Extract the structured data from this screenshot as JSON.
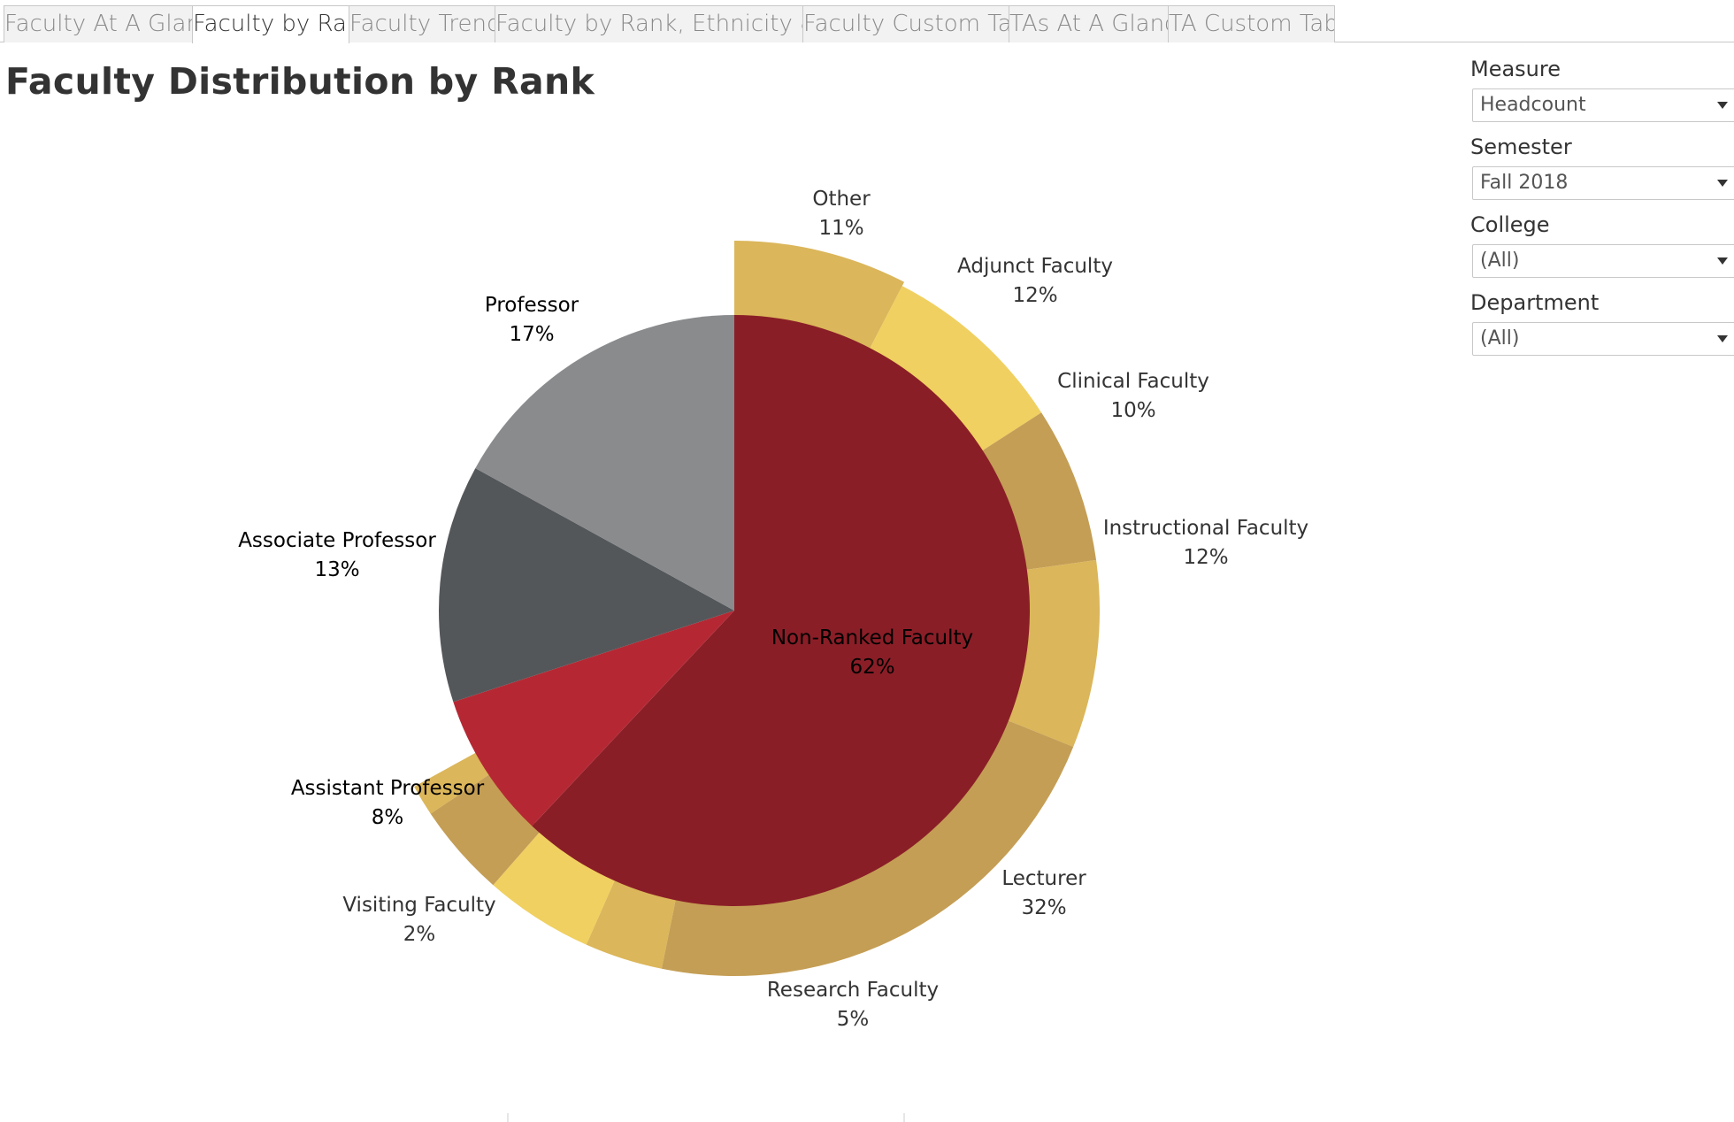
{
  "tabs": [
    {
      "label": "Faculty At A Glance",
      "active": false
    },
    {
      "label": "Faculty by Rank",
      "active": true
    },
    {
      "label": "Faculty Trends",
      "active": false
    },
    {
      "label": "Faculty by Rank, Ethnicity & Ge...",
      "active": false
    },
    {
      "label": "Faculty Custom Table",
      "active": false
    },
    {
      "label": "TAs At A Glance",
      "active": false
    },
    {
      "label": "TA Custom Table",
      "active": false
    }
  ],
  "page_title": "Faculty Distribution by Rank",
  "filters": [
    {
      "label": "Measure",
      "value": "Headcount"
    },
    {
      "label": "Semester",
      "value": "Fall 2018"
    },
    {
      "label": "College",
      "value": "(All)"
    },
    {
      "label": "Department",
      "value": "(All)"
    }
  ],
  "chart_data": {
    "type": "pie",
    "title": "",
    "inner": {
      "slices": [
        {
          "label": "Non-Ranked Faculty",
          "value": 62,
          "text": "62%",
          "color": "#8a1e27"
        },
        {
          "label": "Assistant Professor",
          "value": 8,
          "text": "8%",
          "color": "#b52833"
        },
        {
          "label": "Associate Professor",
          "value": 13,
          "text": "13%",
          "color": "#54575a"
        },
        {
          "label": "Professor",
          "value": 17,
          "text": "17%",
          "color": "#898b8d"
        }
      ]
    },
    "outer": {
      "slices": [
        {
          "label": "Other",
          "value": 11,
          "text": "11%",
          "color": "#dbb65a"
        },
        {
          "label": "Adjunct Faculty",
          "value": 12,
          "text": "12%",
          "color": "#f0d060"
        },
        {
          "label": "Clinical Faculty",
          "value": 10,
          "text": "10%",
          "color": "#c49e55"
        },
        {
          "label": "Instructional Faculty",
          "value": 12,
          "text": "12%",
          "color": "#dbb65a"
        },
        {
          "label": "Lecturer",
          "value": 32,
          "text": "32%",
          "color": "#c49e55"
        },
        {
          "label": "Research Faculty",
          "value": 5,
          "text": "5%",
          "color": "#dbb65a"
        },
        {
          "label": "",
          "value": 7,
          "text": "",
          "color": "#f0d060"
        },
        {
          "label": "",
          "value": 6,
          "text": "",
          "color": "#c49e55"
        },
        {
          "label": "Visiting Faculty",
          "value": 2,
          "text": "2%",
          "color": "#dbb65a"
        }
      ]
    }
  }
}
